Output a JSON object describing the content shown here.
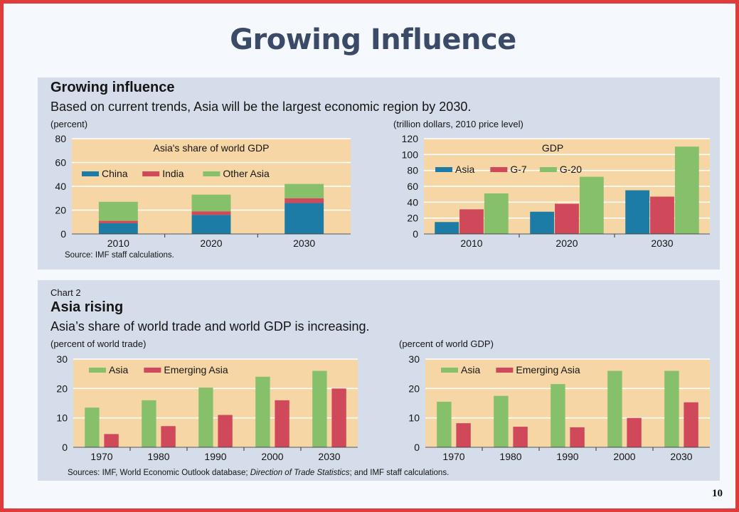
{
  "slide": {
    "title": "Growing Influence",
    "page_number": "10"
  },
  "panel1": {
    "title": "Growing influence",
    "subtitle": "Based on current trends, Asia will be the largest economic region by 2030.",
    "left_unit": "(percent)",
    "right_unit": "(trillion dollars, 2010 price level)",
    "source": "Source: IMF staff calculations."
  },
  "panel2": {
    "chart_label": "Chart 2",
    "title": "Asia rising",
    "subtitle": "Asia’s share of world trade and world GDP is increasing.",
    "left_unit": "(percent of world trade)",
    "right_unit": "(percent of world GDP)",
    "source_parts": [
      "Sources: IMF, World Economic Outlook database; ",
      "Direction of Trade Statistics",
      "; and IMF staff calculations."
    ]
  },
  "colors": {
    "plot_bg": "#f6d6a4",
    "panel_bg": "#d4dde9",
    "china": "#1c7ca6",
    "india": "#d0495a",
    "other_asia": "#86c06a",
    "asia_blue": "#1c7ca6",
    "g7": "#d0495a",
    "g20": "#86c06a"
  },
  "chart_data": [
    {
      "type": "bar",
      "stacked": true,
      "title": "Asia's share of world GDP",
      "categories": [
        "2010",
        "2020",
        "2030"
      ],
      "series": [
        {
          "name": "China",
          "values": [
            9,
            16,
            26
          ],
          "color": "#1c7ca6"
        },
        {
          "name": "India",
          "values": [
            2,
            3,
            4
          ],
          "color": "#d0495a"
        },
        {
          "name": "Other Asia",
          "values": [
            16,
            14,
            12
          ],
          "color": "#86c06a"
        }
      ],
      "ylim": [
        0,
        80
      ],
      "yticks": [
        0,
        20,
        40,
        60,
        80
      ],
      "legend": "top-left",
      "grid": true
    },
    {
      "type": "bar",
      "title": "GDP",
      "categories": [
        "2010",
        "2020",
        "2030"
      ],
      "series": [
        {
          "name": "Asia",
          "values": [
            15,
            28,
            55
          ],
          "color": "#1c7ca6"
        },
        {
          "name": "G-7",
          "values": [
            31,
            38,
            47
          ],
          "color": "#d0495a"
        },
        {
          "name": "G-20",
          "values": [
            51,
            72,
            110
          ],
          "color": "#86c06a"
        }
      ],
      "ylim": [
        0,
        120
      ],
      "yticks": [
        0,
        20,
        40,
        60,
        80,
        100,
        120
      ],
      "legend": "top-left",
      "grid": true
    },
    {
      "type": "bar",
      "title": "",
      "categories": [
        "1970",
        "1980",
        "1990",
        "2000",
        "2030"
      ],
      "series": [
        {
          "name": "Asia",
          "values": [
            13.5,
            16,
            20.3,
            24,
            26
          ],
          "color": "#86c06a"
        },
        {
          "name": "Emerging Asia",
          "values": [
            4.5,
            7.2,
            11,
            16,
            20
          ],
          "color": "#d0495a"
        }
      ],
      "ylim": [
        0,
        30
      ],
      "yticks": [
        0,
        10,
        20,
        30
      ],
      "legend": "top-left",
      "grid": true
    },
    {
      "type": "bar",
      "title": "",
      "categories": [
        "1970",
        "1980",
        "1990",
        "2000",
        "2030"
      ],
      "series": [
        {
          "name": "Asia",
          "values": [
            15.5,
            17.5,
            21.5,
            26,
            26
          ],
          "color": "#86c06a"
        },
        {
          "name": "Emerging Asia",
          "values": [
            8.2,
            7,
            6.8,
            10,
            15.3
          ],
          "color": "#d0495a"
        }
      ],
      "ylim": [
        0,
        30
      ],
      "yticks": [
        0,
        10,
        20,
        30
      ],
      "legend": "top-left",
      "grid": true
    }
  ]
}
